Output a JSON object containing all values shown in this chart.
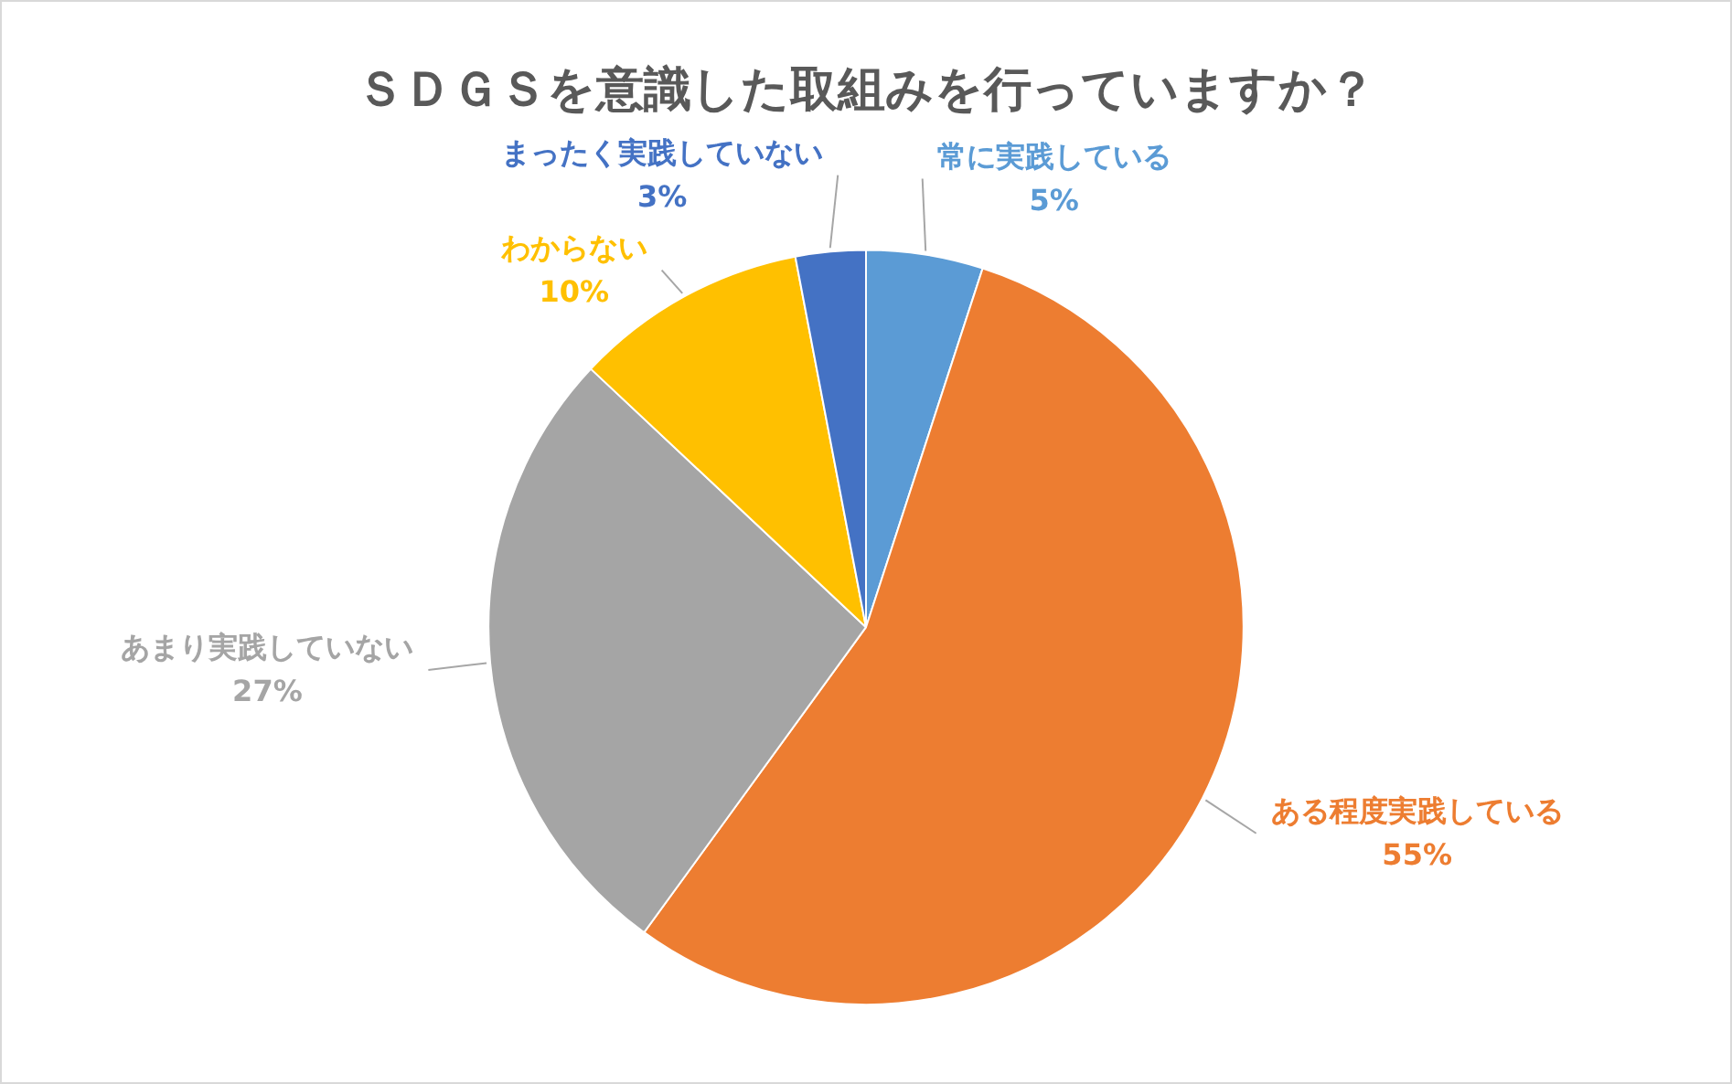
{
  "chart_data": {
    "type": "pie",
    "title": "ＳＤＧＳを意識した取組みを行っていますか？",
    "categories": [
      "常に実践している",
      "ある程度実践している",
      "あまり実践していない",
      "わからない",
      "まったく実践していない"
    ],
    "values": [
      5,
      55,
      27,
      10,
      3
    ],
    "colors": [
      "#5b9bd5",
      "#ed7d31",
      "#a5a5a5",
      "#ffc000",
      "#4472c4"
    ],
    "value_labels": [
      "5%",
      "55%",
      "27%",
      "10%",
      "3%"
    ],
    "legend": false
  }
}
